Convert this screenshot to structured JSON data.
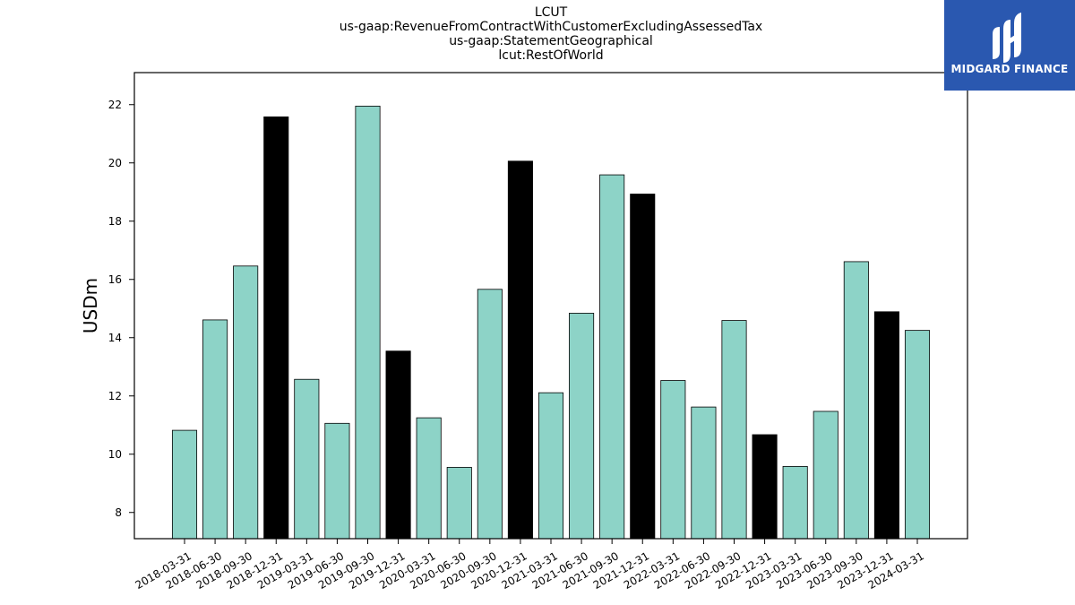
{
  "chart_data": {
    "type": "bar",
    "title_lines": [
      "LCUT",
      "us-gaap:RevenueFromContractWithCustomerExcludingAssessedTax",
      "us-gaap:StatementGeographical",
      "lcut:RestOfWorld"
    ],
    "xlabel": "",
    "ylabel": "USDm",
    "ylim": [
      7.1,
      23.1
    ],
    "yticks": [
      8,
      10,
      12,
      14,
      16,
      18,
      20,
      22
    ],
    "grid": false,
    "colors": {
      "regular": "#8dd3c7",
      "q4": "#000000",
      "edge": "#000000"
    },
    "categories": [
      "2018-03-31",
      "2018-06-30",
      "2018-09-30",
      "2018-12-31",
      "2019-03-31",
      "2019-06-30",
      "2019-09-30",
      "2019-12-31",
      "2020-03-31",
      "2020-06-30",
      "2020-09-30",
      "2020-12-31",
      "2021-03-31",
      "2021-06-30",
      "2021-09-30",
      "2021-12-31",
      "2022-03-31",
      "2022-06-30",
      "2022-09-30",
      "2022-12-31",
      "2023-03-31",
      "2023-06-30",
      "2023-09-30",
      "2023-12-31",
      "2024-03-31"
    ],
    "values": [
      10.82,
      14.61,
      16.46,
      21.58,
      12.57,
      11.06,
      21.95,
      13.54,
      11.25,
      9.55,
      15.66,
      20.06,
      12.11,
      14.84,
      19.59,
      18.93,
      12.53,
      11.62,
      14.59,
      10.67,
      9.58,
      11.47,
      16.61,
      14.89,
      14.25
    ],
    "highlight": [
      false,
      false,
      false,
      true,
      false,
      false,
      false,
      true,
      false,
      false,
      false,
      true,
      false,
      false,
      false,
      true,
      false,
      false,
      false,
      true,
      false,
      false,
      false,
      true,
      false
    ]
  },
  "logo": {
    "text": "MIDGARD FINANCE",
    "icon": "midgard-finance-logo-icon"
  }
}
